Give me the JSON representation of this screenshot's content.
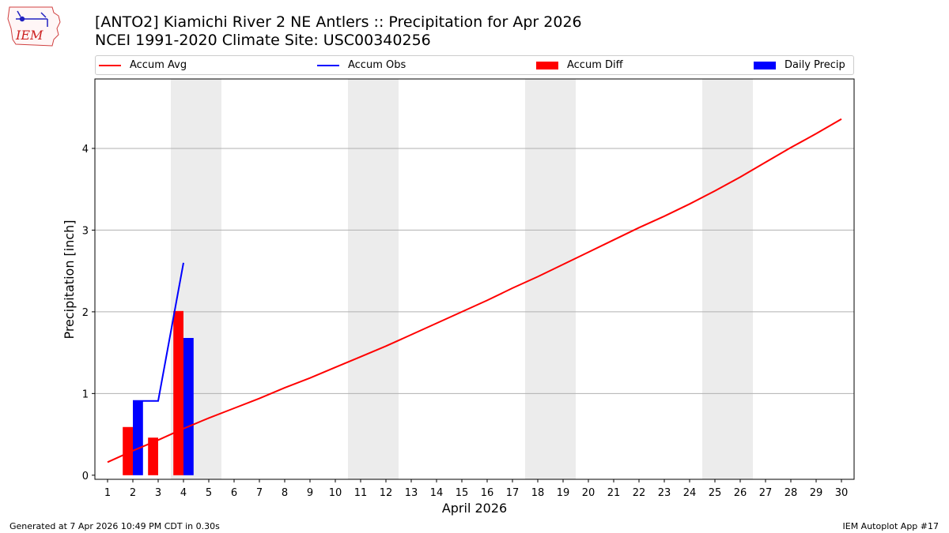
{
  "header": {
    "title_line1": "[ANTO2] Kiamichi River 2 NE Antlers :: Precipitation for Apr 2026",
    "title_line2": "NCEI 1991-2020 Climate Site: USC00340256",
    "logo_text": "IEM"
  },
  "legend": {
    "items": [
      {
        "label": "Accum Avg",
        "kind": "line",
        "color": "#ff0000"
      },
      {
        "label": "Accum Obs",
        "kind": "line",
        "color": "#0000ff"
      },
      {
        "label": "Accum Diff",
        "kind": "box",
        "color": "#ff0000"
      },
      {
        "label": "Daily Precip",
        "kind": "box",
        "color": "#0000ff"
      }
    ]
  },
  "footer": {
    "left": "Generated at 7 Apr 2026 10:49 PM CDT in 0.30s",
    "right": "IEM Autoplot App #17"
  },
  "chart_data": {
    "type": "bar",
    "title": "[ANTO2] Kiamichi River 2 NE Antlers :: Precipitation for Apr 2026",
    "xlabel": "April 2026",
    "ylabel": "Precipitation [inch]",
    "xlim": [
      0.5,
      30.5
    ],
    "ylim": [
      -0.05,
      4.85
    ],
    "yticks": [
      0,
      1,
      2,
      3,
      4
    ],
    "xticks": [
      1,
      2,
      3,
      4,
      5,
      6,
      7,
      8,
      9,
      10,
      11,
      12,
      13,
      14,
      15,
      16,
      17,
      18,
      19,
      20,
      21,
      22,
      23,
      24,
      25,
      26,
      27,
      28,
      29,
      30
    ],
    "grid": "horizontal",
    "weekend_bands": [
      [
        3.5,
        5.5
      ],
      [
        10.5,
        12.5
      ],
      [
        17.5,
        19.5
      ],
      [
        24.5,
        26.5
      ]
    ],
    "series": [
      {
        "name": "Accum Avg",
        "type": "line",
        "color": "#ff0000",
        "x": [
          1,
          2,
          3,
          4,
          5,
          6,
          7,
          8,
          9,
          10,
          11,
          12,
          13,
          14,
          15,
          16,
          17,
          18,
          19,
          20,
          21,
          22,
          23,
          24,
          25,
          26,
          27,
          28,
          29,
          30
        ],
        "values": [
          0.16,
          0.3,
          0.43,
          0.57,
          0.7,
          0.82,
          0.94,
          1.07,
          1.19,
          1.32,
          1.45,
          1.58,
          1.72,
          1.86,
          2.0,
          2.14,
          2.29,
          2.43,
          2.58,
          2.73,
          2.88,
          3.03,
          3.17,
          3.32,
          3.48,
          3.65,
          3.83,
          4.01,
          4.18,
          4.36
        ]
      },
      {
        "name": "Accum Obs",
        "type": "line",
        "color": "#0000ff",
        "x": [
          2,
          3,
          4
        ],
        "values": [
          0.91,
          0.91,
          2.6
        ]
      },
      {
        "name": "Accum Diff",
        "type": "bar",
        "color": "#ff0000",
        "x": [
          2,
          3,
          4
        ],
        "values": [
          0.59,
          0.46,
          2.01
        ]
      },
      {
        "name": "Daily Precip",
        "type": "bar",
        "color": "#0000ff",
        "x": [
          2,
          3,
          4
        ],
        "values": [
          0.91,
          0.0,
          1.68
        ]
      }
    ]
  }
}
